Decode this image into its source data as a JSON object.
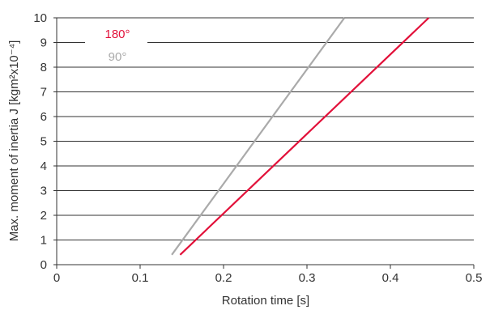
{
  "chart_data": {
    "type": "line",
    "xlabel": "Rotation time [s]",
    "ylabel": "Max. moment of inertia J [kgm²x10⁻⁴]",
    "xlim": [
      0,
      0.5
    ],
    "ylim": [
      0,
      10
    ],
    "x_ticks": [
      "0",
      "0.1",
      "0.2",
      "0.3",
      "0.4",
      "0.5"
    ],
    "y_ticks": [
      "0",
      "1",
      "2",
      "3",
      "4",
      "5",
      "6",
      "7",
      "8",
      "9",
      "10"
    ],
    "grid": "horizontal",
    "legend_position": "top-left",
    "series": [
      {
        "name": "180°",
        "color": "#e2113a",
        "x": [
          0.148,
          0.446
        ],
        "y": [
          0.4,
          10
        ]
      },
      {
        "name": "90°",
        "color": "#aaaaaa",
        "x": [
          0.138,
          0.345
        ],
        "y": [
          0.4,
          10
        ]
      }
    ]
  }
}
